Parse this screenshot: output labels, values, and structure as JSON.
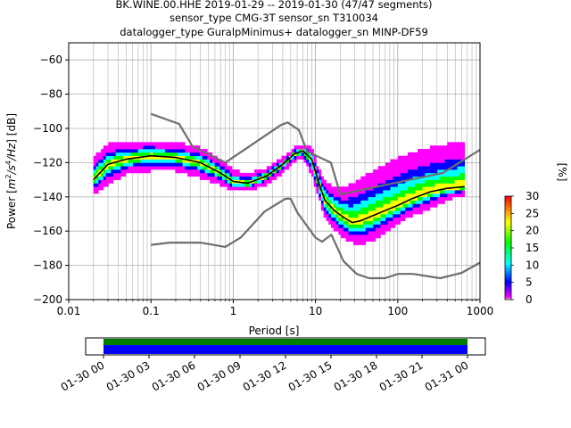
{
  "title_lines": [
    "BK.WINE.00.HHE   2019-01-29 -- 2019-01-30  (47/47 segments)",
    "sensor_type CMG-3T sensor_sn T310034",
    "datalogger_type GuralpMinimus+ datalogger_sn MINP-DF59"
  ],
  "chart_data": {
    "type": "heatmap",
    "title": "BK.WINE.00.HHE   2019-01-29 -- 2019-01-30  (47/47 segments)",
    "xlabel": "Period [s]",
    "ylabel": "Power [m²/s⁴/Hz] [dB]",
    "ylabel_parts": {
      "pre": "Power [",
      "m": "m",
      "m_sup": "2",
      "slash_s": "/s",
      "s_sup": "4",
      "hz": "/Hz",
      "post": "] [dB]"
    },
    "xscale": "log",
    "xlim": [
      0.01,
      1000
    ],
    "ylim": [
      -200,
      -50
    ],
    "x_ticks": [
      0.01,
      0.1,
      1,
      10,
      100,
      1000
    ],
    "x_tick_labels": [
      "0.01",
      "0.1",
      "1",
      "10",
      "100",
      "1000"
    ],
    "y_ticks": [
      -200,
      -180,
      -160,
      -140,
      -120,
      -100,
      -80,
      -60
    ],
    "y_tick_labels": [
      "−200",
      "−180",
      "−160",
      "−140",
      "−120",
      "−100",
      "−80",
      "−60"
    ],
    "grid": true,
    "colorbar": {
      "label": "[%]",
      "range": [
        0,
        30
      ],
      "ticks": [
        0,
        5,
        10,
        15,
        20,
        25,
        30
      ],
      "tick_labels": [
        "0",
        "5",
        "10",
        "15",
        "20",
        "25",
        "30"
      ],
      "colors": [
        "#ffffff",
        "#ff00ff",
        "#0000ff",
        "#00ffff",
        "#00ff00",
        "#ffff00",
        "#ff0000"
      ]
    },
    "mean_curve": {
      "period": [
        0.02,
        0.03,
        0.05,
        0.1,
        0.2,
        0.4,
        0.7,
        1.0,
        1.5,
        2.5,
        4.0,
        5.5,
        7.0,
        9.0,
        11,
        13,
        17,
        22,
        28,
        35,
        50,
        70,
        100,
        150,
        250,
        400,
        650
      ],
      "power": [
        -130,
        -121,
        -118,
        -116,
        -117,
        -120,
        -126,
        -131,
        -132,
        -128,
        -121,
        -115,
        -113,
        -118,
        -132,
        -142,
        -148,
        -152,
        -155,
        -154,
        -151,
        -148,
        -145,
        -141,
        -137,
        -135,
        -134
      ]
    },
    "noise_models": {
      "new_high_noise_model": {
        "period": [
          0.1,
          0.22,
          0.32,
          0.8,
          3.8,
          4.6,
          6.3,
          7.9,
          15.4,
          20,
          354.8,
          1000
        ],
        "power": [
          -91.5,
          -97.4,
          -110.5,
          -120,
          -98,
          -96.5,
          -101,
          -113.5,
          -120,
          -138.5,
          -126,
          -112.5
        ]
      },
      "new_low_noise_model": {
        "period": [
          0.1,
          0.17,
          0.4,
          0.8,
          1.24,
          2.4,
          4.3,
          5.0,
          6.0,
          10.0,
          12.0,
          15.6,
          21.9,
          31.6,
          45,
          70,
          101,
          154,
          328,
          600,
          1000
        ],
        "power": [
          -168,
          -166.7,
          -166.7,
          -169.2,
          -163.7,
          -148.6,
          -141.1,
          -141.1,
          -149,
          -163.8,
          -166.2,
          -162.1,
          -177.5,
          -185,
          -187.5,
          -187.5,
          -185,
          -185,
          -187.5,
          -184.4,
          -178.4
        ]
      }
    },
    "ppsd_band": {
      "period": [
        0.02,
        0.03,
        0.05,
        0.1,
        0.2,
        0.4,
        0.7,
        1.0,
        1.5,
        2.5,
        4.0,
        5.5,
        7.0,
        9.0,
        11,
        13,
        17,
        22,
        28,
        35,
        50,
        70,
        100,
        150,
        250,
        400,
        650
      ],
      "upper": [
        -118,
        -110,
        -108,
        -108,
        -109,
        -112,
        -119,
        -125,
        -127,
        -124,
        -118,
        -112,
        -110,
        -112,
        -125,
        -131,
        -135,
        -136,
        -133,
        -130,
        -126,
        -122,
        -118,
        -115,
        -112,
        -110,
        -108
      ],
      "lower": [
        -138,
        -132,
        -126,
        -124,
        -124,
        -128,
        -132,
        -136,
        -136,
        -132,
        -125,
        -119,
        -116,
        -126,
        -140,
        -152,
        -158,
        -163,
        -166,
        -167,
        -165,
        -160,
        -155,
        -150,
        -146,
        -141,
        -138
      ]
    },
    "timeline": {
      "tick_labels": [
        "01-30 00",
        "01-30 03",
        "01-30 06",
        "01-30 09",
        "01-30 12",
        "01-30 15",
        "01-30 18",
        "01-30 21",
        "01-31 00"
      ],
      "coverage_start": "01-30 00",
      "coverage_end": "01-31 00",
      "bar_colors": [
        "#008000",
        "#0000ff"
      ]
    }
  }
}
